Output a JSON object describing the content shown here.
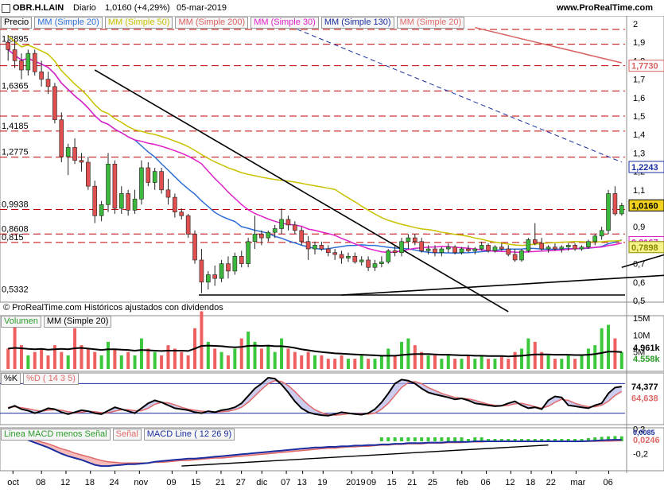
{
  "header": {
    "symbol": "OBR.H.LAIN",
    "period": "Diario",
    "last": "1,0160 (+4,29%)",
    "date": "05-mar-2019",
    "site": "www.ProRealTime.com"
  },
  "copyright": "© ProRealTime.com Históricos ajustados con dividendos",
  "legends": {
    "price": [
      {
        "label": "Precio",
        "color": "#000000"
      },
      {
        "label": "MM (Simple 20)",
        "color": "#2e6fd6"
      },
      {
        "label": "MM (Simple 50)",
        "color": "#c8c200"
      },
      {
        "label": "MM (Simple 200)",
        "color": "#d86060"
      },
      {
        "label": "MM (Simple 30)",
        "color": "#e020c8"
      },
      {
        "label": "MM (Simple 130)",
        "color": "#1a2ea0"
      },
      {
        "label": "MM (Simple 20)",
        "color": "#e06a6a"
      }
    ],
    "volume": [
      {
        "label": "Volumen",
        "color": "#2a9a2a"
      },
      {
        "label": "MM (Simple 20)",
        "color": "#000000"
      }
    ],
    "stoch": [
      {
        "label": "%K",
        "color": "#000000"
      },
      {
        "label": "%D ( 14 3 5)",
        "color": "#e06a6a"
      }
    ],
    "macd": [
      {
        "label": "Linea MACD menos Señal",
        "color": "#2a9a2a"
      },
      {
        "label": "Señal",
        "color": "#e06a6a"
      },
      {
        "label": "MACD Line ( 12 26 9)",
        "color": "#1a2ea0"
      }
    ]
  },
  "chart_data": {
    "type": "candlestick",
    "x_ticks": [
      "oct",
      "08",
      "12",
      "18",
      "24",
      "nov",
      "09",
      "15",
      "21",
      "27",
      "dic",
      "07",
      "13",
      "19",
      "2019",
      "09",
      "15",
      "21",
      "25",
      "feb",
      "06",
      "12",
      "18",
      "22",
      "mar",
      "06"
    ],
    "price_axis": {
      "ylim": [
        0.5,
        2.0
      ],
      "ticks": [
        "2",
        "1,9",
        "1,8",
        "1,7",
        "1,6",
        "1,5",
        "1,4",
        "1,3",
        "1,2",
        "1,1",
        "0,9",
        "0,8",
        "0,7",
        "0,6",
        "0,5"
      ],
      "left_levels": [
        {
          "label": "1,8895",
          "value": 1.8895
        },
        {
          "label": "1,6365",
          "value": 1.6365
        },
        {
          "label": "1,4185",
          "value": 1.4185
        },
        {
          "label": "1,2775",
          "value": 1.2775
        },
        {
          "label": "0,9938",
          "value": 0.9938
        },
        {
          "label": "0,8608",
          "value": 0.8608
        },
        {
          "label": "0,815",
          "value": 0.815
        },
        {
          "label": "0,5332",
          "value": 0.5332
        }
      ],
      "right_badges": [
        {
          "label": "1,7730",
          "color": "#d86060",
          "value": 1.773
        },
        {
          "label": "1,2243",
          "color": "#1a2ea0",
          "value": 1.2243
        },
        {
          "label": "1,0160",
          "color": "#000000",
          "value": 1.016,
          "bg": "#f2d21c"
        },
        {
          "label": "0,8167",
          "color": "#e020c8",
          "value": 0.8167
        },
        {
          "label": "0,7898",
          "color": "#8a8a00",
          "value": 0.7898,
          "bg": "#f5f28a"
        }
      ]
    },
    "dashed_levels": [
      1.97,
      1.8895,
      1.773,
      1.6365,
      1.5,
      1.4185,
      1.2775,
      0.9938,
      0.8608,
      0.815
    ],
    "candles": [
      [
        1.9,
        1.94,
        1.8,
        1.86
      ],
      [
        1.86,
        1.92,
        1.76,
        1.8
      ],
      [
        1.8,
        1.84,
        1.7,
        1.75
      ],
      [
        1.75,
        1.86,
        1.72,
        1.84
      ],
      [
        1.84,
        1.86,
        1.72,
        1.74
      ],
      [
        1.74,
        1.8,
        1.66,
        1.7
      ],
      [
        1.7,
        1.74,
        1.62,
        1.66
      ],
      [
        1.66,
        1.68,
        1.46,
        1.48
      ],
      [
        1.48,
        1.52,
        1.25,
        1.28
      ],
      [
        1.28,
        1.35,
        1.18,
        1.33
      ],
      [
        1.33,
        1.38,
        1.24,
        1.26
      ],
      [
        1.26,
        1.3,
        1.2,
        1.25
      ],
      [
        1.25,
        1.28,
        1.1,
        1.12
      ],
      [
        1.12,
        1.15,
        0.92,
        0.96
      ],
      [
        0.96,
        1.04,
        0.93,
        1.02
      ],
      [
        1.02,
        1.3,
        0.98,
        1.24
      ],
      [
        1.24,
        1.26,
        0.97,
        1.0
      ],
      [
        1.0,
        1.12,
        0.97,
        1.08
      ],
      [
        1.08,
        1.1,
        0.96,
        0.99
      ],
      [
        0.99,
        1.1,
        0.97,
        1.05
      ],
      [
        1.05,
        1.26,
        1.02,
        1.22
      ],
      [
        1.22,
        1.25,
        1.12,
        1.14
      ],
      [
        1.14,
        1.22,
        1.1,
        1.2
      ],
      [
        1.2,
        1.22,
        1.08,
        1.1
      ],
      [
        1.1,
        1.16,
        1.02,
        1.06
      ],
      [
        1.06,
        1.08,
        0.95,
        0.98
      ],
      [
        0.98,
        1.0,
        0.94,
        0.96
      ],
      [
        0.96,
        0.97,
        0.84,
        0.86
      ],
      [
        0.86,
        0.88,
        0.7,
        0.72
      ],
      [
        0.72,
        0.78,
        0.54,
        0.6
      ],
      [
        0.6,
        0.66,
        0.56,
        0.64
      ],
      [
        0.64,
        0.69,
        0.58,
        0.62
      ],
      [
        0.62,
        0.72,
        0.6,
        0.7
      ],
      [
        0.7,
        0.74,
        0.62,
        0.66
      ],
      [
        0.66,
        0.76,
        0.64,
        0.74
      ],
      [
        0.74,
        0.77,
        0.68,
        0.7
      ],
      [
        0.7,
        0.84,
        0.68,
        0.82
      ],
      [
        0.82,
        0.96,
        0.78,
        0.86
      ],
      [
        0.86,
        0.88,
        0.8,
        0.84
      ],
      [
        0.84,
        0.88,
        0.82,
        0.87
      ],
      [
        0.87,
        0.91,
        0.84,
        0.89
      ],
      [
        0.89,
        1.0,
        0.86,
        0.94
      ],
      [
        0.94,
        0.96,
        0.88,
        0.91
      ],
      [
        0.91,
        0.93,
        0.86,
        0.88
      ],
      [
        0.88,
        0.9,
        0.8,
        0.82
      ],
      [
        0.82,
        0.85,
        0.72,
        0.78
      ],
      [
        0.78,
        0.82,
        0.75,
        0.8
      ],
      [
        0.8,
        0.82,
        0.77,
        0.78
      ],
      [
        0.78,
        0.8,
        0.74,
        0.76
      ],
      [
        0.76,
        0.78,
        0.72,
        0.75
      ],
      [
        0.75,
        0.77,
        0.7,
        0.73
      ],
      [
        0.73,
        0.76,
        0.71,
        0.74
      ],
      [
        0.74,
        0.76,
        0.7,
        0.71
      ],
      [
        0.71,
        0.74,
        0.69,
        0.72
      ],
      [
        0.72,
        0.74,
        0.66,
        0.68
      ],
      [
        0.68,
        0.72,
        0.66,
        0.7
      ],
      [
        0.7,
        0.74,
        0.68,
        0.71
      ],
      [
        0.71,
        0.78,
        0.7,
        0.77
      ],
      [
        0.77,
        0.8,
        0.74,
        0.76
      ],
      [
        0.76,
        0.84,
        0.74,
        0.82
      ],
      [
        0.82,
        0.86,
        0.78,
        0.84
      ],
      [
        0.84,
        0.86,
        0.8,
        0.82
      ],
      [
        0.82,
        0.84,
        0.76,
        0.77
      ],
      [
        0.77,
        0.8,
        0.75,
        0.78
      ],
      [
        0.78,
        0.8,
        0.74,
        0.76
      ],
      [
        0.76,
        0.79,
        0.74,
        0.78
      ],
      [
        0.78,
        0.81,
        0.76,
        0.79
      ],
      [
        0.79,
        0.8,
        0.75,
        0.76
      ],
      [
        0.76,
        0.79,
        0.75,
        0.78
      ],
      [
        0.78,
        0.8,
        0.76,
        0.77
      ],
      [
        0.77,
        0.79,
        0.75,
        0.78
      ],
      [
        0.78,
        0.82,
        0.77,
        0.8
      ],
      [
        0.8,
        0.81,
        0.76,
        0.77
      ],
      [
        0.77,
        0.8,
        0.76,
        0.79
      ],
      [
        0.79,
        0.81,
        0.77,
        0.78
      ],
      [
        0.78,
        0.8,
        0.74,
        0.75
      ],
      [
        0.75,
        0.78,
        0.71,
        0.72
      ],
      [
        0.72,
        0.78,
        0.71,
        0.77
      ],
      [
        0.77,
        0.84,
        0.76,
        0.83
      ],
      [
        0.83,
        0.92,
        0.8,
        0.81
      ],
      [
        0.81,
        0.84,
        0.77,
        0.78
      ],
      [
        0.78,
        0.8,
        0.76,
        0.79
      ],
      [
        0.79,
        0.81,
        0.77,
        0.78
      ],
      [
        0.78,
        0.8,
        0.76,
        0.79
      ],
      [
        0.79,
        0.81,
        0.77,
        0.8
      ],
      [
        0.8,
        0.81,
        0.77,
        0.78
      ],
      [
        0.78,
        0.8,
        0.77,
        0.79
      ],
      [
        0.79,
        0.83,
        0.78,
        0.82
      ],
      [
        0.82,
        0.86,
        0.8,
        0.85
      ],
      [
        0.85,
        0.9,
        0.83,
        0.88
      ],
      [
        0.88,
        1.1,
        0.86,
        1.08
      ],
      [
        1.08,
        1.12,
        0.96,
        0.97
      ],
      [
        0.97,
        1.03,
        0.96,
        1.016
      ]
    ],
    "trendlines": [
      {
        "from": [
          13,
          1.75
        ],
        "to": [
          75,
          0.44
        ],
        "color": "#000000"
      },
      {
        "from": [
          50,
          0.53
        ],
        "to": [
          159,
          0.77
        ],
        "color": "#000000"
      },
      {
        "from": [
          92,
          0.68
        ],
        "to": [
          106,
          0.83
        ],
        "color": "#000000"
      }
    ],
    "volume": {
      "ticks": [
        "15M",
        "10M",
        "5M"
      ],
      "ma_value": "4.961k",
      "last_value": "4.558k",
      "values": [
        6,
        14,
        7,
        4,
        5,
        6,
        4,
        7,
        5,
        4,
        12,
        7,
        6,
        5,
        4,
        8,
        6,
        4,
        5,
        4,
        9,
        6,
        5,
        4,
        7,
        6,
        5,
        4,
        12,
        17,
        8,
        6,
        5,
        4,
        6,
        9,
        11,
        8,
        6,
        7,
        5,
        9,
        6,
        5,
        4,
        5,
        4,
        4,
        3,
        3,
        4,
        3,
        3,
        4,
        3,
        3,
        4,
        6,
        4,
        8,
        9,
        7,
        5,
        4,
        4,
        3,
        4,
        3,
        3,
        4,
        3,
        4,
        3,
        3,
        4,
        3,
        5,
        6,
        9,
        8,
        5,
        4,
        3,
        3,
        4,
        3,
        4,
        6,
        7,
        12,
        13,
        9,
        5
      ],
      "ma": [
        6,
        6.2,
        6.1,
        5.9,
        5.8,
        5.9,
        5.7,
        5.8,
        5.9,
        5.8,
        6.1,
        6.2,
        6,
        5.8,
        5.6,
        5.8,
        5.8,
        5.7,
        5.6,
        5.4,
        5.6,
        5.5,
        5.4,
        5.3,
        5.4,
        5.4,
        5.4,
        5.3,
        6,
        6.8,
        6.9,
        6.8,
        6.7,
        6.5,
        6.4,
        6.5,
        6.8,
        6.9,
        6.8,
        6.9,
        6.7,
        6.7,
        6.5,
        6.2,
        5.8,
        5.5,
        5.2,
        5,
        4.8,
        4.6,
        4.5,
        4.4,
        4.3,
        4.2,
        4.1,
        4,
        3.9,
        3.9,
        3.9,
        4.1,
        4.3,
        4.4,
        4.4,
        4.4,
        4.3,
        4.2,
        4.2,
        4.1,
        4,
        4,
        3.9,
        3.9,
        3.8,
        3.8,
        3.8,
        3.7,
        3.8,
        3.9,
        4.1,
        4.3,
        4.3,
        4.3,
        4.2,
        4.2,
        4.2,
        4.1,
        4.1,
        4.2,
        4.4,
        4.7,
        5.1,
        5.1,
        5
      ]
    },
    "stochastic": {
      "k_last": "74,377",
      "d_last": "64,638",
      "k": [
        30,
        35,
        28,
        25,
        20,
        24,
        30,
        28,
        22,
        18,
        22,
        26,
        24,
        20,
        18,
        25,
        32,
        28,
        24,
        20,
        30,
        40,
        46,
        42,
        36,
        30,
        28,
        26,
        22,
        20,
        24,
        22,
        26,
        28,
        32,
        40,
        55,
        70,
        80,
        92,
        90,
        78,
        62,
        44,
        30,
        22,
        18,
        16,
        15,
        18,
        22,
        20,
        18,
        17,
        20,
        28,
        42,
        60,
        80,
        88,
        86,
        80,
        70,
        62,
        58,
        55,
        52,
        48,
        50,
        46,
        40,
        38,
        36,
        34,
        35,
        40,
        44,
        36,
        30,
        32,
        28,
        46,
        54,
        52,
        36,
        34,
        32,
        30,
        36,
        40,
        60,
        72,
        74
      ],
      "d": [
        32,
        33,
        31,
        29,
        26,
        24,
        26,
        27,
        26,
        23,
        21,
        22,
        24,
        23,
        21,
        21,
        24,
        27,
        27,
        25,
        25,
        30,
        38,
        42,
        41,
        37,
        32,
        28,
        26,
        24,
        23,
        22,
        23,
        24,
        27,
        32,
        42,
        55,
        68,
        80,
        86,
        84,
        76,
        64,
        50,
        37,
        27,
        21,
        17,
        16,
        17,
        19,
        19,
        19,
        18,
        20,
        28,
        40,
        56,
        72,
        82,
        84,
        80,
        72,
        66,
        60,
        56,
        52,
        50,
        49,
        46,
        42,
        38,
        36,
        35,
        36,
        39,
        40,
        37,
        33,
        30,
        34,
        42,
        48,
        46,
        40,
        36,
        33,
        33,
        36,
        44,
        56,
        64
      ]
    },
    "macd": {
      "ticks": [
        "0,2",
        "0",
        "-0,2"
      ],
      "line_last": "0,0246",
      "signal_last": "0,0085",
      "macd": [
        0.12,
        0.1,
        0.06,
        0.02,
        -0.02,
        -0.06,
        -0.1,
        -0.15,
        -0.2,
        -0.24,
        -0.27,
        -0.3,
        -0.34,
        -0.38,
        -0.4,
        -0.4,
        -0.39,
        -0.38,
        -0.37,
        -0.37,
        -0.36,
        -0.35,
        -0.33,
        -0.32,
        -0.31,
        -0.3,
        -0.29,
        -0.28,
        -0.28,
        -0.27,
        -0.26,
        -0.25,
        -0.24,
        -0.23,
        -0.22,
        -0.21,
        -0.2,
        -0.19,
        -0.18,
        -0.17,
        -0.16,
        -0.15,
        -0.14,
        -0.13,
        -0.12,
        -0.11,
        -0.1,
        -0.1,
        -0.09,
        -0.09,
        -0.08,
        -0.08,
        -0.07,
        -0.07,
        -0.06,
        -0.06,
        -0.05,
        -0.05,
        -0.04,
        -0.04,
        -0.03,
        -0.03,
        -0.03,
        -0.02,
        -0.02,
        -0.02,
        -0.01,
        -0.01,
        -0.01,
        -0.01,
        0,
        0,
        0,
        0,
        0,
        0,
        0,
        0,
        0,
        0,
        0,
        0,
        0,
        0,
        0,
        0,
        0,
        0.005,
        0.01,
        0.015,
        0.02,
        0.024,
        0.0246
      ],
      "signal": [
        0.1,
        0.09,
        0.07,
        0.05,
        0.02,
        -0.01,
        -0.04,
        -0.08,
        -0.12,
        -0.15,
        -0.19,
        -0.22,
        -0.25,
        -0.28,
        -0.31,
        -0.33,
        -0.34,
        -0.35,
        -0.35,
        -0.35,
        -0.35,
        -0.35,
        -0.34,
        -0.34,
        -0.33,
        -0.32,
        -0.31,
        -0.31,
        -0.3,
        -0.29,
        -0.28,
        -0.27,
        -0.27,
        -0.26,
        -0.25,
        -0.24,
        -0.23,
        -0.22,
        -0.21,
        -0.2,
        -0.19,
        -0.18,
        -0.17,
        -0.16,
        -0.15,
        -0.14,
        -0.13,
        -0.12,
        -0.11,
        -0.11,
        -0.1,
        -0.09,
        -0.09,
        -0.08,
        -0.08,
        -0.07,
        -0.06,
        -0.06,
        -0.05,
        -0.05,
        -0.04,
        -0.04,
        -0.04,
        -0.03,
        -0.03,
        -0.03,
        -0.02,
        -0.02,
        -0.02,
        -0.01,
        -0.01,
        -0.01,
        0,
        0,
        0,
        0,
        0,
        0,
        0,
        0,
        0,
        0,
        0,
        0,
        0,
        0,
        0,
        0,
        0,
        0.002,
        0.004,
        0.006,
        0.0085
      ]
    }
  }
}
